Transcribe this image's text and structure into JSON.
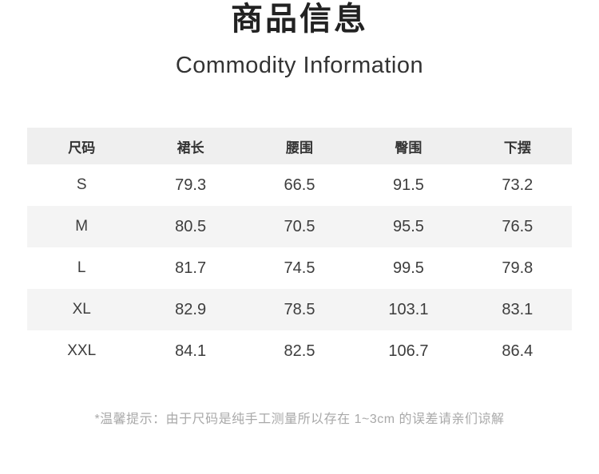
{
  "page": {
    "title": "商品信息",
    "subtitle": "Commodity Information"
  },
  "size_table": {
    "headers": [
      "尺码",
      "裙长",
      "腰围",
      "臀围",
      "下摆"
    ],
    "rows": [
      [
        "S",
        "79.3",
        "66.5",
        "91.5",
        "73.2"
      ],
      [
        "M",
        "80.5",
        "70.5",
        "95.5",
        "76.5"
      ],
      [
        "L",
        "81.7",
        "74.5",
        "99.5",
        "79.8"
      ],
      [
        "XL",
        "82.9",
        "78.5",
        "103.1",
        "83.1"
      ],
      [
        "XXL",
        "84.1",
        "82.5",
        "106.7",
        "86.4"
      ]
    ]
  },
  "note": "*温馨提示：由于尺码是纯手工测量所以存在 1~3cm 的误差请亲们谅解",
  "colors": {
    "background": "#ffffff",
    "header_row_bg": "#efefef",
    "alt_row_bg": "#f4f4f4",
    "title_text": "#222222",
    "table_text": "#3d3d3d",
    "note_text": "#a9a9a9"
  }
}
